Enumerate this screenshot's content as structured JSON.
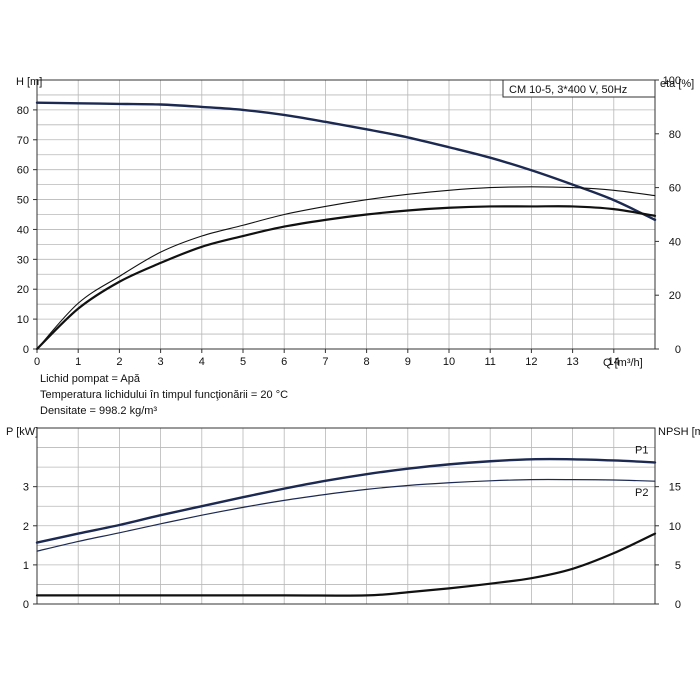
{
  "chart_data": [
    {
      "type": "line",
      "title": "CM 10-5, 3*400 V, 50Hz",
      "xlabel": "Q [m³/h]",
      "ylabel": "H [m]",
      "y2label": "eta [%]",
      "xlim": [
        0,
        15
      ],
      "ylim": [
        0,
        90
      ],
      "y2lim": [
        0,
        100
      ],
      "grid": true,
      "x_ticks": [
        "0",
        "1",
        "2",
        "3",
        "4",
        "5",
        "6",
        "7",
        "8",
        "9",
        "10",
        "11",
        "12",
        "13",
        "14"
      ],
      "y_ticks": [
        "0",
        "10",
        "20",
        "30",
        "40",
        "50",
        "60",
        "70",
        "80"
      ],
      "y2_ticks": [
        "0",
        "20",
        "40",
        "60",
        "80",
        "100"
      ],
      "series": [
        {
          "name": "",
          "axis": "left",
          "style": "dark-blue-thick",
          "x": [
            0,
            1,
            2,
            3,
            4,
            5,
            6,
            7,
            8,
            9,
            10,
            11,
            12,
            13,
            14,
            15
          ],
          "y": [
            82.4,
            82.2,
            82,
            81.8,
            81,
            80,
            78.3,
            76,
            73.5,
            70.8,
            67.5,
            64,
            59.8,
            55,
            49.8,
            43.2
          ]
        },
        {
          "name": "",
          "axis": "right",
          "style": "black-thin",
          "x": [
            0,
            1,
            2,
            3,
            4,
            5,
            6,
            7,
            8,
            9,
            10,
            11,
            12,
            13,
            14,
            15
          ],
          "y": [
            0,
            17,
            27,
            36,
            42,
            46,
            50,
            53,
            55.5,
            57.5,
            59,
            60,
            60.3,
            60,
            59,
            57
          ]
        },
        {
          "name": "",
          "axis": "right",
          "style": "black-thick",
          "x": [
            0,
            1,
            2,
            3,
            4,
            5,
            6,
            7,
            8,
            9,
            10,
            11,
            12,
            13,
            14,
            15
          ],
          "y": [
            0,
            15,
            25,
            32,
            38,
            42,
            45.5,
            48,
            50,
            51.5,
            52.5,
            53,
            53,
            53,
            52,
            49.5
          ]
        }
      ]
    },
    {
      "type": "line",
      "ylabel": "P [kW]",
      "y2label": "NPSH [m]",
      "xlim": [
        0,
        15
      ],
      "ylim": [
        0,
        4.5
      ],
      "y2lim": [
        0,
        22.5
      ],
      "grid": true,
      "y_ticks": [
        "0",
        "1",
        "2",
        "3"
      ],
      "y2_ticks": [
        "0",
        "5",
        "10",
        "15"
      ],
      "series": [
        {
          "name": "P1",
          "axis": "left",
          "style": "dark-blue-thick",
          "x": [
            0,
            1,
            2,
            3,
            4,
            5,
            6,
            7,
            8,
            9,
            10,
            11,
            12,
            13,
            14,
            15
          ],
          "y": [
            1.57,
            1.8,
            2.02,
            2.27,
            2.5,
            2.73,
            2.95,
            3.15,
            3.32,
            3.46,
            3.57,
            3.65,
            3.7,
            3.7,
            3.67,
            3.62
          ]
        },
        {
          "name": "P2",
          "axis": "left",
          "style": "dark-blue-thin",
          "x": [
            0,
            1,
            2,
            3,
            4,
            5,
            6,
            7,
            8,
            9,
            10,
            11,
            12,
            13,
            14,
            15
          ],
          "y": [
            1.35,
            1.6,
            1.82,
            2.05,
            2.27,
            2.47,
            2.65,
            2.8,
            2.93,
            3.03,
            3.1,
            3.15,
            3.18,
            3.18,
            3.17,
            3.14
          ]
        },
        {
          "name": "",
          "axis": "right",
          "style": "black-thick",
          "x": [
            0,
            3,
            6,
            8,
            9,
            10,
            11,
            12,
            13,
            14,
            15
          ],
          "y": [
            1.1,
            1.1,
            1.1,
            1.1,
            1.5,
            2,
            2.6,
            3.3,
            4.5,
            6.5,
            9
          ]
        }
      ]
    }
  ],
  "fluid_info": [
    "Lichid pompat = Apă",
    "Temperatura lichidului în timpul funcţionării = 20 °C",
    "Densitate = 998.2 kg/m³"
  ]
}
